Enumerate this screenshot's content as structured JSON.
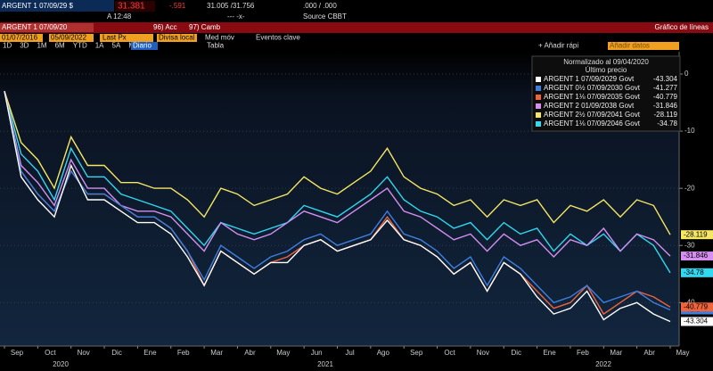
{
  "header": {
    "ticker": "ARGENT 1 07/09/29 $",
    "price": "31.381",
    "change": "-.591",
    "bid_ask": "31.005 /31.756",
    "yield": ".000 / .000",
    "time": "A 12:48",
    "spread": "--- -x-",
    "source": "Source CBBT"
  },
  "toolbar": {
    "security": "ARGENT 1 07/09/20",
    "acc": "96) Acc",
    "camb": "97) Camb",
    "title": "Gráfico de líneas",
    "start_date": "01/07/2016",
    "end_date": "05/09/2022",
    "field": "Last Px",
    "currency": "Divisa local",
    "moving_avg": "Med móv",
    "events": "Eventos clave",
    "periods": [
      "1D",
      "3D",
      "1M",
      "6M",
      "YTD",
      "1A",
      "5A",
      "Máx"
    ],
    "frequency": "Diario",
    "table": "Tabla",
    "add_quick": "+ Añadir rápi",
    "add_data": "Añadir datos",
    "tools": [
      "Seguir",
      "Anotar",
      "Noticias",
      "Zoom"
    ]
  },
  "chart_data": {
    "type": "line",
    "legend_title": "Normalizado al 09/04/2020",
    "legend_subtitle": "Último precio",
    "categories": [
      "Sep",
      null,
      "Oct",
      null,
      "Nov",
      null,
      "Dic",
      null,
      "Ene",
      null,
      "Feb",
      null,
      "Mar",
      null,
      "Abr",
      null,
      "May",
      null,
      "Jun",
      null,
      "Jul",
      null,
      "Ago",
      null,
      "Sep",
      null,
      "Oct",
      null,
      "Nov",
      null,
      "Dic",
      null,
      "Ene",
      null,
      "Feb",
      null,
      "Mar",
      null,
      "Abr",
      null,
      "May"
    ],
    "year_labels": [
      "2020",
      "2021",
      "2022"
    ],
    "ylim": [
      -47.6,
      3.9
    ],
    "yticks": [
      0,
      -10,
      -20,
      -30,
      -40
    ],
    "grid": true,
    "series": [
      {
        "name": "ARGENT 1 07/09/2029 Govt",
        "color": "#ffffff",
        "values": [
          -3,
          -18,
          -22,
          -25,
          -16,
          -22,
          -22,
          -24,
          -26,
          -26,
          -28,
          -32,
          -37,
          -31,
          -33,
          -35,
          -33,
          -33,
          -30,
          -29,
          -31,
          -30,
          -29,
          -25.6,
          -29,
          -30,
          -32,
          -35,
          -33,
          -38,
          -33,
          -35,
          -39,
          -42,
          -41,
          -38,
          -43,
          -41,
          -40,
          -42,
          -43.304
        ]
      },
      {
        "name": "ARGENT 0½ 07/09/2030 Govt",
        "color": "#3d7fe0",
        "values": [
          -3,
          -17,
          -21,
          -24,
          -17,
          -21,
          -21,
          -23,
          -25,
          -25,
          -27,
          -31,
          -36,
          -30,
          -32,
          -34,
          -32,
          -31,
          -29,
          -28,
          -30,
          -29,
          -28,
          -24,
          -28,
          -29,
          -31,
          -34,
          -32,
          -37,
          -32,
          -34,
          -37,
          -40,
          -39,
          -37,
          -40,
          -39,
          -38,
          -40,
          -41.277
        ]
      },
      {
        "name": "ARGENT 1⅛ 07/09/2035 Govt",
        "color": "#f0643c",
        "values": [
          -3,
          -17,
          -21,
          -24,
          -17,
          -21,
          -21,
          -23,
          -25,
          -25,
          -27,
          -31,
          -37,
          -31,
          -33,
          -35,
          -33,
          -32,
          -30,
          -29,
          -31,
          -30,
          -29,
          -25,
          -29,
          -30,
          -32,
          -35,
          -33,
          -38,
          -33,
          -35,
          -38,
          -41,
          -40,
          -37,
          -42,
          -40,
          -38,
          -39,
          -40.779
        ]
      },
      {
        "name": "ARGENT 2 01/09/2038 Govt",
        "color": "#d48ff0",
        "values": [
          -3,
          -16,
          -19,
          -23,
          -15,
          -20,
          -20,
          -23,
          -24,
          -24,
          -25,
          -28,
          -31,
          -26,
          -28,
          -29,
          -28,
          -26,
          -24,
          -25,
          -26,
          -24,
          -22,
          -20,
          -24,
          -25,
          -27,
          -29,
          -28,
          -31,
          -28,
          -30,
          -29,
          -32,
          -29,
          -30,
          -27,
          -31,
          -28,
          -29,
          -31.846
        ]
      },
      {
        "name": "ARGENT 2½ 07/09/2041 Govt",
        "color": "#f5e663",
        "values": [
          -3,
          -12,
          -15,
          -20,
          -11,
          -16,
          -16,
          -19,
          -19,
          -20,
          -20,
          -22,
          -25,
          -20,
          -21,
          -23,
          -22,
          -21,
          -18,
          -20,
          -21,
          -19,
          -17,
          -13,
          -18,
          -20,
          -21,
          -23,
          -22,
          -25,
          -22,
          -23,
          -22,
          -26,
          -23,
          -24,
          -22,
          -25,
          -22,
          -23,
          -28.119
        ]
      },
      {
        "name": "ARGENT 1⅛ 07/09/2046 Govt",
        "color": "#30d8f0",
        "values": [
          -3,
          -14,
          -17,
          -22,
          -13,
          -18,
          -18,
          -21,
          -22,
          -23,
          -24,
          -27,
          -30,
          -26,
          -27,
          -28,
          -27,
          -26,
          -23,
          -24,
          -25,
          -23,
          -21,
          -18,
          -22,
          -24,
          -25,
          -27,
          -26,
          -29,
          -26,
          -28,
          -27,
          -31,
          -28,
          -30,
          -28,
          -31,
          -28,
          -30,
          -34.78
        ]
      }
    ]
  }
}
